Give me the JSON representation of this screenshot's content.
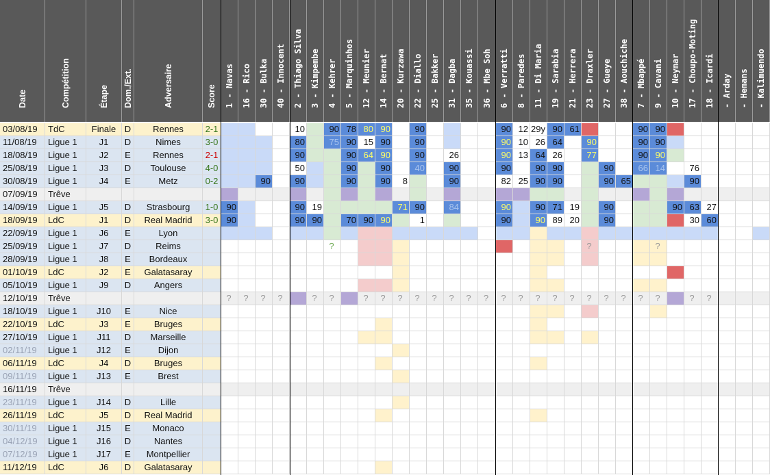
{
  "headers": {
    "info": [
      "Date",
      "Compétition",
      "Étape",
      "Dom./Ext.",
      "Adversaire",
      "Score"
    ],
    "players": [
      "1 - Navas",
      "16 - Rico",
      "30 - Bulka",
      "40 - Innocent",
      "2 - Thiago Silva",
      "3 - Kimpembe",
      "4 - Kehrer",
      "5 - Marquinhos",
      "12 - Meunier",
      "14 - Bernat",
      "20 - Kurzawa",
      "22 - Diallo",
      "25 - Bakker",
      "31 - Dagba",
      "35 - Kouassi",
      "36 - Mbe Soh",
      "6 - Verratti",
      "8 - Paredes",
      "11 - Di Maria",
      "19 - Sarabia",
      "21 - Herrera",
      "23 - Draxler",
      "27 - Gueye",
      "38 - Aouchiche",
      "7 - Mbappé",
      "9 - Cavani",
      "10 - Neymar",
      "17 - Choupo-Moting",
      "18 - Icardi",
      "- Arday",
      "- Hemans",
      "- Kalimuendo"
    ]
  },
  "colors": {
    "header_bg": "#595959",
    "tdc": "#fdf2cc",
    "ldc": "#fdf2cc",
    "ligue1": "#dbe5f1",
    "treve": "#efefef",
    "blue_dark": "#5b8bd9",
    "blue_light": "#c9daf8",
    "green": "#d8ead3",
    "purple": "#b4a7d6",
    "red": "#e06666",
    "pink": "#f4cccc",
    "yellow": "#fff2cc",
    "score_win": "#38761d",
    "score_loss": "#cc0000",
    "yellow_text": "#ffff66"
  },
  "rows": [
    {
      "date": "03/08/19",
      "comp": "TdC",
      "etape": "Finale",
      "dom": "D",
      "adv": "Rennes",
      "score": "2-1",
      "score_color": "win",
      "bg": "tdc"
    },
    {
      "date": "11/08/19",
      "comp": "Ligue 1",
      "etape": "J1",
      "dom": "D",
      "adv": "Nimes",
      "score": "3-0",
      "score_color": "win",
      "bg": "ligue1"
    },
    {
      "date": "18/08/19",
      "comp": "Ligue 1",
      "etape": "J2",
      "dom": "E",
      "adv": "Rennes",
      "score": "2-1",
      "score_color": "loss",
      "bg": "ligue1"
    },
    {
      "date": "25/08/19",
      "comp": "Ligue 1",
      "etape": "J3",
      "dom": "D",
      "adv": "Toulouse",
      "score": "4-0",
      "score_color": "win",
      "bg": "ligue1"
    },
    {
      "date": "30/08/19",
      "comp": "Ligue 1",
      "etape": "J4",
      "dom": "E",
      "adv": "Metz",
      "score": "0-2",
      "score_color": "win",
      "bg": "ligue1"
    },
    {
      "date": "07/09/19",
      "comp": "Trêve",
      "etape": "",
      "dom": "",
      "adv": "",
      "score": "",
      "bg": "treve"
    },
    {
      "date": "14/09/19",
      "comp": "Ligue 1",
      "etape": "J5",
      "dom": "D",
      "adv": "Strasbourg",
      "score": "1-0",
      "score_color": "win",
      "bg": "ligue1"
    },
    {
      "date": "18/09/19",
      "comp": "LdC",
      "etape": "J1",
      "dom": "D",
      "adv": "Real Madrid",
      "score": "3-0",
      "score_color": "win",
      "bg": "ldc"
    },
    {
      "date": "22/09/19",
      "comp": "Ligue 1",
      "etape": "J6",
      "dom": "E",
      "adv": "Lyon",
      "score": "",
      "bg": "ligue1"
    },
    {
      "date": "25/09/19",
      "comp": "Ligue 1",
      "etape": "J7",
      "dom": "D",
      "adv": "Reims",
      "score": "",
      "bg": "ligue1"
    },
    {
      "date": "28/09/19",
      "comp": "Ligue 1",
      "etape": "J8",
      "dom": "E",
      "adv": "Bordeaux",
      "score": "",
      "bg": "ligue1"
    },
    {
      "date": "01/10/19",
      "comp": "LdC",
      "etape": "J2",
      "dom": "E",
      "adv": "Galatasaray",
      "score": "",
      "bg": "ldc"
    },
    {
      "date": "05/10/19",
      "comp": "Ligue 1",
      "etape": "J9",
      "dom": "D",
      "adv": "Angers",
      "score": "",
      "bg": "ligue1"
    },
    {
      "date": "12/10/19",
      "comp": "Trêve",
      "etape": "",
      "dom": "",
      "adv": "",
      "score": "",
      "bg": "treve"
    },
    {
      "date": "18/10/19",
      "comp": "Ligue 1",
      "etape": "J10",
      "dom": "E",
      "adv": "Nice",
      "score": "",
      "bg": "ligue1"
    },
    {
      "date": "22/10/19",
      "comp": "LdC",
      "etape": "J3",
      "dom": "E",
      "adv": "Bruges",
      "score": "",
      "bg": "ldc"
    },
    {
      "date": "27/10/19",
      "comp": "Ligue 1",
      "etape": "J11",
      "dom": "D",
      "adv": "Marseille",
      "score": "",
      "bg": "ligue1"
    },
    {
      "date": "02/11/19",
      "comp": "Ligue 1",
      "etape": "J12",
      "dom": "E",
      "adv": "Dijon",
      "score": "",
      "bg": "ligue1",
      "date_faded": true
    },
    {
      "date": "06/11/19",
      "comp": "LdC",
      "etape": "J4",
      "dom": "D",
      "adv": "Bruges",
      "score": "",
      "bg": "ldc"
    },
    {
      "date": "09/11/19",
      "comp": "Ligue 1",
      "etape": "J13",
      "dom": "E",
      "adv": "Brest",
      "score": "",
      "bg": "ligue1",
      "date_faded": true
    },
    {
      "date": "16/11/19",
      "comp": "Trêve",
      "etape": "",
      "dom": "",
      "adv": "",
      "score": "",
      "bg": "treve"
    },
    {
      "date": "23/11/19",
      "comp": "Ligue 1",
      "etape": "J14",
      "dom": "D",
      "adv": "Lille",
      "score": "",
      "bg": "ligue1",
      "date_faded": true
    },
    {
      "date": "26/11/19",
      "comp": "LdC",
      "etape": "J5",
      "dom": "D",
      "adv": "Real Madrid",
      "score": "",
      "bg": "ldc"
    },
    {
      "date": "30/11/19",
      "comp": "Ligue 1",
      "etape": "J15",
      "dom": "E",
      "adv": "Monaco",
      "score": "",
      "bg": "ligue1",
      "date_faded": true
    },
    {
      "date": "04/12/19",
      "comp": "Ligue 1",
      "etape": "J16",
      "dom": "D",
      "adv": "Nantes",
      "score": "",
      "bg": "ligue1",
      "date_faded": true
    },
    {
      "date": "07/12/19",
      "comp": "Ligue 1",
      "etape": "J17",
      "dom": "E",
      "adv": "Montpellier",
      "score": "",
      "bg": "ligue1",
      "date_faded": true
    },
    {
      "date": "11/12/19",
      "comp": "LdC",
      "etape": "J6",
      "dom": "D",
      "adv": "Galatasaray",
      "score": "",
      "bg": "ldc"
    }
  ],
  "grid": [
    [
      "L",
      "L",
      "",
      "",
      "10",
      "G",
      "D90",
      "D78",
      "D80y",
      "D90y",
      "",
      "D90",
      "",
      "L",
      "",
      "",
      "D90",
      "12",
      "29y",
      "D90",
      "D61",
      "R",
      "",
      "",
      "D90",
      "D90",
      "R",
      "",
      "",
      "",
      "",
      ""
    ],
    [
      "L",
      "L",
      "L",
      "",
      "D80",
      "G",
      "D75f",
      "D90",
      "15",
      "D90",
      "",
      "D90",
      "",
      "L",
      "",
      "",
      "D90y",
      "10",
      "26",
      "D64",
      "",
      "D90y",
      "",
      "",
      "D90",
      "D90",
      "L",
      "",
      "",
      "",
      "",
      ""
    ],
    [
      "L",
      "L",
      "L",
      "",
      "D90",
      "G",
      "G",
      "D90",
      "D64y",
      "D90y",
      "",
      "D90",
      "",
      "26",
      "",
      "",
      "D90y",
      "13",
      "D64",
      "26",
      "",
      "D77y",
      "",
      "",
      "D90",
      "D90y",
      "G",
      "",
      "",
      "",
      "",
      ""
    ],
    [
      "L",
      "L",
      "L",
      "",
      "50",
      "L",
      "G",
      "D90",
      "G",
      "D90",
      "",
      "D40f",
      "",
      "D90",
      "",
      "",
      "D90",
      "",
      "D90",
      "D90",
      "",
      "G",
      "D90",
      "",
      "D66f",
      "D14f",
      "",
      "76",
      "",
      "",
      "",
      ""
    ],
    [
      "L",
      "L",
      "D90",
      "",
      "D90",
      "L",
      "G",
      "D90",
      "G",
      "D90",
      "8",
      "G",
      "",
      "D90",
      "",
      "",
      "82",
      "25",
      "D90",
      "D90",
      "",
      "G",
      "D90",
      "D65",
      "G",
      "G",
      "L",
      "D90",
      "",
      "",
      "",
      ""
    ],
    [
      "P",
      "",
      "",
      "",
      "P",
      "",
      "G",
      "P",
      "G",
      "P",
      "",
      "G",
      "",
      "P",
      "",
      "",
      "P",
      "P",
      "G",
      "G",
      "",
      "G",
      "",
      "",
      "P",
      "G",
      "P",
      "",
      "",
      "",
      "",
      ""
    ],
    [
      "D90",
      "L",
      "",
      "",
      "D90",
      "19",
      "G",
      "G",
      "G",
      "G",
      "D71y",
      "D90",
      "",
      "D84f",
      "",
      "",
      "D90y",
      "L",
      "D90",
      "D71",
      "19",
      "G",
      "D90",
      "",
      "G",
      "G",
      "D90",
      "D63",
      "27",
      "",
      "",
      ""
    ],
    [
      "D90",
      "L",
      "",
      "",
      "D90",
      "D90",
      "G",
      "D70",
      "D90",
      "D90y",
      "G",
      "1",
      "",
      "G",
      "",
      "",
      "D90",
      "L",
      "D90y",
      "89",
      "20",
      "G",
      "D90",
      "",
      "G",
      "G",
      "R",
      "30",
      "D60",
      "",
      "",
      ""
    ],
    [
      "L",
      "L",
      "L",
      "",
      "L",
      "L",
      "G",
      "L",
      "K",
      "K",
      "L",
      "L",
      "L",
      "L",
      "L",
      "",
      "L",
      "L",
      "Y",
      "L",
      "L",
      "K",
      "L",
      "L",
      "L",
      "L",
      "L",
      "L",
      "L",
      "",
      "",
      "L"
    ],
    [
      "",
      "",
      "",
      "",
      "",
      "",
      "Q",
      "",
      "K",
      "K",
      "Y",
      "",
      "",
      "",
      "",
      "",
      "R",
      "",
      "Y",
      "Y",
      "",
      "Kq",
      "",
      "",
      "Y",
      "Yq",
      "",
      "",
      "",
      "",
      "",
      ""
    ],
    [
      "",
      "",
      "",
      "",
      "",
      "",
      "",
      "",
      "K",
      "K",
      "Y",
      "",
      "",
      "",
      "",
      "",
      "",
      "",
      "Y",
      "Y",
      "",
      "K",
      "",
      "",
      "Y",
      "Y",
      "",
      "",
      "",
      "",
      "",
      ""
    ],
    [
      "",
      "",
      "",
      "",
      "",
      "",
      "",
      "",
      "",
      "",
      "Y",
      "",
      "",
      "",
      "",
      "",
      "",
      "",
      "Y",
      "",
      "",
      "",
      "",
      "",
      "",
      "",
      "R",
      "",
      "",
      "",
      "",
      ""
    ],
    [
      "",
      "",
      "",
      "",
      "",
      "",
      "",
      "",
      "K",
      "K",
      "Y",
      "",
      "",
      "",
      "",
      "",
      "",
      "",
      "Y",
      "Y",
      "",
      "",
      "",
      "",
      "Y",
      "Y",
      "",
      "",
      "",
      "",
      "",
      ""
    ],
    [
      "Q",
      "Q",
      "Q",
      "Q",
      "P",
      "Q",
      "Q",
      "P",
      "Q",
      "Q",
      "Q",
      "Q",
      "Q",
      "Q",
      "Q",
      "Q",
      "Q",
      "Q",
      "Q",
      "Q",
      "Q",
      "Q",
      "Q",
      "Q",
      "Q",
      "Q",
      "P",
      "Q",
      "Q",
      "",
      "",
      ""
    ],
    [
      "",
      "",
      "",
      "",
      "",
      "",
      "",
      "",
      "",
      "",
      "",
      "",
      "",
      "",
      "",
      "",
      "",
      "",
      "Y",
      "Y",
      "",
      "K",
      "",
      "",
      "",
      "Y",
      "",
      "",
      "",
      "",
      "",
      ""
    ],
    [
      "",
      "",
      "",
      "",
      "",
      "",
      "",
      "",
      "",
      "Y",
      "",
      "",
      "",
      "",
      "",
      "",
      "",
      "",
      "Y",
      "",
      "",
      "",
      "",
      "",
      "",
      "",
      "",
      "",
      "",
      "",
      "",
      ""
    ],
    [
      "",
      "",
      "",
      "",
      "",
      "",
      "",
      "",
      "Y",
      "Y",
      "",
      "",
      "",
      "",
      "",
      "",
      "",
      "",
      "Y",
      "Y",
      "",
      "Y",
      "",
      "",
      "",
      "",
      "",
      "",
      "",
      "",
      "",
      ""
    ],
    [
      "",
      "",
      "",
      "",
      "",
      "",
      "",
      "",
      "",
      "",
      "Y",
      "",
      "",
      "",
      "",
      "",
      "",
      "",
      "",
      "",
      "",
      "",
      "",
      "",
      "",
      "",
      "",
      "",
      "",
      "",
      "",
      ""
    ],
    [
      "",
      "",
      "",
      "",
      "",
      "",
      "",
      "",
      "",
      "Y",
      "",
      "",
      "",
      "",
      "",
      "",
      "",
      "",
      "Y",
      "",
      "",
      "",
      "",
      "",
      "",
      "",
      "",
      "",
      "",
      "",
      "",
      ""
    ],
    [
      "",
      "",
      "",
      "",
      "",
      "",
      "",
      "",
      "",
      "",
      "Y",
      "",
      "",
      "",
      "",
      "",
      "",
      "",
      "",
      "",
      "",
      "",
      "",
      "",
      "",
      "",
      "",
      "",
      "",
      "",
      "",
      ""
    ],
    [
      "T",
      "T",
      "T",
      "T",
      "T",
      "T",
      "T",
      "T",
      "T",
      "T",
      "T",
      "T",
      "T",
      "T",
      "T",
      "T",
      "T",
      "T",
      "T",
      "T",
      "T",
      "T",
      "T",
      "T",
      "T",
      "T",
      "T",
      "T",
      "T",
      "T",
      "T",
      "T"
    ],
    [
      "",
      "",
      "",
      "",
      "",
      "",
      "",
      "",
      "",
      "",
      "Y",
      "",
      "",
      "",
      "",
      "",
      "",
      "",
      "",
      "",
      "",
      "",
      "",
      "",
      "",
      "",
      "",
      "",
      "",
      "",
      "",
      ""
    ],
    [
      "",
      "",
      "",
      "",
      "",
      "",
      "",
      "",
      "",
      "Y",
      "",
      "",
      "",
      "",
      "",
      "",
      "",
      "",
      "Y",
      "",
      "",
      "",
      "",
      "",
      "",
      "",
      "",
      "",
      "",
      "",
      "",
      ""
    ],
    [
      "",
      "",
      "",
      "",
      "",
      "",
      "",
      "",
      "",
      "",
      "",
      "",
      "",
      "",
      "",
      "",
      "",
      "",
      "",
      "",
      "",
      "",
      "",
      "",
      "",
      "",
      "",
      "",
      "",
      "",
      "",
      ""
    ],
    [
      "",
      "",
      "",
      "",
      "",
      "",
      "",
      "",
      "",
      "",
      "",
      "",
      "",
      "",
      "",
      "",
      "",
      "",
      "",
      "",
      "",
      "",
      "",
      "",
      "",
      "",
      "",
      "",
      "",
      "",
      "",
      ""
    ],
    [
      "",
      "",
      "",
      "",
      "",
      "",
      "",
      "",
      "",
      "",
      "",
      "",
      "",
      "",
      "",
      "",
      "",
      "",
      "",
      "",
      "",
      "",
      "",
      "",
      "",
      "",
      "",
      "",
      "",
      "",
      "",
      ""
    ],
    [
      "",
      "",
      "",
      "",
      "",
      "",
      "",
      "",
      "",
      "Y",
      "",
      "",
      "",
      "",
      "",
      "",
      "",
      "",
      "",
      "",
      "",
      "",
      "",
      "",
      "",
      "",
      "",
      "",
      "",
      "",
      "",
      ""
    ]
  ]
}
